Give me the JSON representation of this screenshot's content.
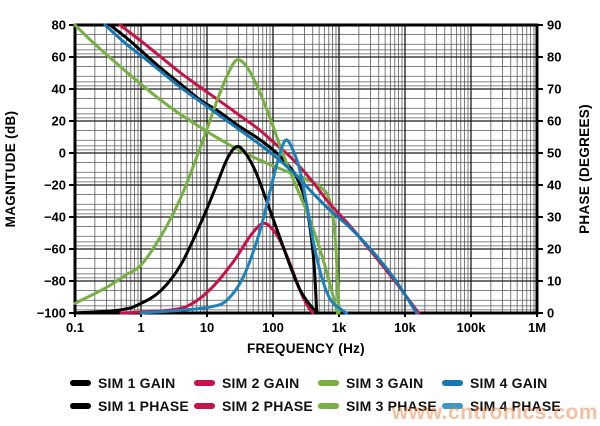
{
  "watermark": {
    "text": "www.cntronics.com",
    "color": "#f08c4e"
  },
  "legend": {
    "items": [
      {
        "label": "SIM 1 GAIN",
        "color": "#000000",
        "series_id": "sim1-gain"
      },
      {
        "label": "SIM 2 GAIN",
        "color": "#c8124a",
        "series_id": "sim2-gain"
      },
      {
        "label": "SIM 3 GAIN",
        "color": "#76b043",
        "series_id": "sim3-gain"
      },
      {
        "label": "SIM 4 GAIN",
        "color": "#1578b2",
        "series_id": "sim4-gain"
      },
      {
        "label": "SIM 1 PHASE",
        "color": "#000000",
        "series_id": "sim1-phase"
      },
      {
        "label": "SIM 2 PHASE",
        "color": "#c8124a",
        "series_id": "sim2-phase"
      },
      {
        "label": "SIM 3 PHASE",
        "color": "#76b043",
        "series_id": "sim3-phase"
      },
      {
        "label": "SIM 4 PHASE",
        "color": "#3f95c6",
        "series_id": "sim4-phase"
      }
    ]
  },
  "chart_data": {
    "type": "line",
    "x_axis": {
      "label": "FREQUENCY (Hz)",
      "scale": "log",
      "range": [
        0.1,
        1000000
      ],
      "ticks": [
        {
          "f": 0.1,
          "label": "0.1"
        },
        {
          "f": 1,
          "label": "1"
        },
        {
          "f": 10,
          "label": "10"
        },
        {
          "f": 100,
          "label": "100"
        },
        {
          "f": 1000,
          "label": "1k"
        },
        {
          "f": 10000,
          "label": "10k"
        },
        {
          "f": 100000,
          "label": "100k"
        },
        {
          "f": 1000000,
          "label": "1M"
        }
      ]
    },
    "y_left": {
      "label": "MAGNITUDE (dB)",
      "range": [
        -100,
        80
      ],
      "ticks": [
        {
          "v": 80,
          "label": "80"
        },
        {
          "v": 60,
          "label": "60"
        },
        {
          "v": 40,
          "label": "40"
        },
        {
          "v": 20,
          "label": "20"
        },
        {
          "v": 0,
          "label": "0"
        },
        {
          "v": -20,
          "label": "−20"
        },
        {
          "v": -40,
          "label": "−40"
        },
        {
          "v": -60,
          "label": "−60"
        },
        {
          "v": -80,
          "label": "−80"
        },
        {
          "v": -100,
          "label": "−100"
        }
      ]
    },
    "y_right": {
      "label": "PHASE (DEGREES)",
      "range": [
        0,
        90
      ],
      "ticks": [
        {
          "v": 90,
          "label": "90"
        },
        {
          "v": 80,
          "label": "80"
        },
        {
          "v": 70,
          "label": "70"
        },
        {
          "v": 60,
          "label": "60"
        },
        {
          "v": 50,
          "label": "50"
        },
        {
          "v": 40,
          "label": "40"
        },
        {
          "v": 30,
          "label": "30"
        },
        {
          "v": 20,
          "label": "20"
        },
        {
          "v": 10,
          "label": "10"
        },
        {
          "v": 0,
          "label": "0"
        }
      ]
    },
    "grid": {
      "major_color": "#1b1b1b",
      "minor_color": "#5a5a5a",
      "grid_on": true
    },
    "legend_position": "bottom",
    "series": [
      {
        "id": "sim3-gain",
        "name": "SIM 3 GAIN",
        "axis": "magnitude",
        "color": "#76b043",
        "points": [
          [
            0.1,
            80
          ],
          [
            0.2,
            68
          ],
          [
            0.4,
            57
          ],
          [
            1,
            43
          ],
          [
            2,
            33
          ],
          [
            4,
            24
          ],
          [
            8,
            16
          ],
          [
            15,
            9
          ],
          [
            30,
            2
          ],
          [
            60,
            -4
          ],
          [
            100,
            -8
          ],
          [
            200,
            -13
          ],
          [
            350,
            -17
          ],
          [
            550,
            -22
          ],
          [
            700,
            -28
          ],
          [
            820,
            -42
          ],
          [
            900,
            -60
          ],
          [
            1000,
            -100
          ]
        ]
      },
      {
        "id": "sim2-gain",
        "name": "SIM 2 GAIN",
        "axis": "magnitude",
        "color": "#c8124a",
        "points": [
          [
            0.48,
            80
          ],
          [
            1,
            70
          ],
          [
            2,
            60
          ],
          [
            4,
            50
          ],
          [
            8,
            41
          ],
          [
            15,
            33
          ],
          [
            30,
            24
          ],
          [
            60,
            15
          ],
          [
            100,
            7
          ],
          [
            200,
            -4
          ],
          [
            400,
            -18
          ],
          [
            700,
            -31
          ],
          [
            1500,
            -46
          ],
          [
            3000,
            -61
          ],
          [
            7000,
            -80
          ],
          [
            16000,
            -100
          ]
        ]
      },
      {
        "id": "sim1-gain",
        "name": "SIM 1 GAIN",
        "axis": "magnitude",
        "color": "#000000",
        "points": [
          [
            0.34,
            80
          ],
          [
            0.6,
            72
          ],
          [
            1,
            64
          ],
          [
            2,
            53
          ],
          [
            4,
            43
          ],
          [
            8,
            33
          ],
          [
            15,
            26
          ],
          [
            30,
            17
          ],
          [
            60,
            9
          ],
          [
            100,
            2
          ],
          [
            150,
            -5
          ],
          [
            220,
            -14
          ],
          [
            300,
            -28
          ],
          [
            360,
            -45
          ],
          [
            420,
            -70
          ],
          [
            460,
            -100
          ]
        ]
      },
      {
        "id": "sim3-phase",
        "name": "SIM 3 PHASE",
        "axis": "phase",
        "color": "#76b043",
        "points": [
          [
            0.1,
            3
          ],
          [
            0.3,
            8
          ],
          [
            0.6,
            12
          ],
          [
            1,
            15
          ],
          [
            2,
            24
          ],
          [
            4,
            36
          ],
          [
            8,
            52
          ],
          [
            14,
            66
          ],
          [
            20,
            74
          ],
          [
            28,
            79
          ],
          [
            40,
            77
          ],
          [
            60,
            70
          ],
          [
            90,
            61
          ],
          [
            140,
            50
          ],
          [
            220,
            40
          ],
          [
            350,
            30
          ],
          [
            550,
            18
          ],
          [
            750,
            8
          ],
          [
            950,
            0
          ]
        ]
      },
      {
        "id": "sim2-phase",
        "name": "SIM 2 PHASE",
        "axis": "phase",
        "color": "#c8124a",
        "points": [
          [
            0.5,
            0
          ],
          [
            3,
            1
          ],
          [
            6,
            3
          ],
          [
            12,
            8
          ],
          [
            25,
            16
          ],
          [
            45,
            24
          ],
          [
            70,
            28
          ],
          [
            100,
            26
          ],
          [
            140,
            21
          ],
          [
            200,
            13
          ],
          [
            270,
            6
          ],
          [
            340,
            2
          ],
          [
            400,
            0
          ]
        ]
      },
      {
        "id": "sim1-phase",
        "name": "SIM 1 PHASE",
        "axis": "phase",
        "color": "#000000",
        "points": [
          [
            0.1,
            0
          ],
          [
            0.5,
            1
          ],
          [
            1,
            3
          ],
          [
            2,
            7
          ],
          [
            4,
            15
          ],
          [
            8,
            28
          ],
          [
            14,
            40
          ],
          [
            20,
            48
          ],
          [
            28,
            52
          ],
          [
            38,
            50
          ],
          [
            55,
            44
          ],
          [
            80,
            35
          ],
          [
            120,
            25
          ],
          [
            180,
            15
          ],
          [
            260,
            7
          ],
          [
            380,
            2
          ],
          [
            480,
            0
          ]
        ]
      },
      {
        "id": "sim4-gain",
        "name": "SIM 4 GAIN",
        "axis": "magnitude",
        "color": "#1578b2",
        "points": [
          [
            0.285,
            80
          ],
          [
            0.6,
            68
          ],
          [
            1,
            61
          ],
          [
            2,
            51
          ],
          [
            4,
            41
          ],
          [
            8,
            32
          ],
          [
            15,
            24
          ],
          [
            30,
            15
          ],
          [
            60,
            6
          ],
          [
            100,
            -1
          ],
          [
            200,
            -12
          ],
          [
            400,
            -25
          ],
          [
            700,
            -35
          ],
          [
            1500,
            -47
          ],
          [
            3000,
            -60
          ],
          [
            7000,
            -79
          ],
          [
            15000,
            -100
          ]
        ]
      },
      {
        "id": "sim4-phase",
        "name": "SIM 4 PHASE",
        "axis": "phase",
        "color": "#1e83ba",
        "points": [
          [
            1,
            0
          ],
          [
            5,
            1
          ],
          [
            12,
            2
          ],
          [
            20,
            4
          ],
          [
            35,
            11
          ],
          [
            60,
            24
          ],
          [
            90,
            38
          ],
          [
            120,
            48
          ],
          [
            155,
            54
          ],
          [
            200,
            51
          ],
          [
            260,
            44
          ],
          [
            330,
            33
          ],
          [
            420,
            21
          ],
          [
            550,
            11
          ],
          [
            750,
            4
          ],
          [
            1100,
            1
          ],
          [
            1300,
            0
          ]
        ]
      }
    ]
  }
}
